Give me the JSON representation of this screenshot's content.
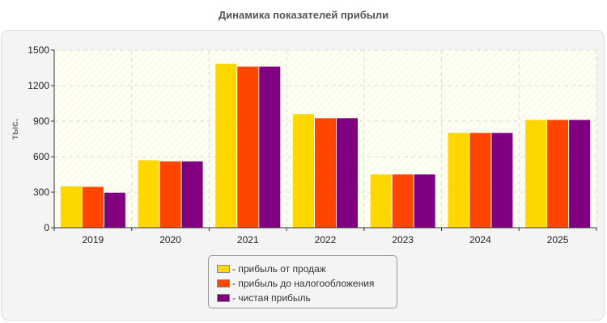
{
  "chart_data": {
    "type": "bar",
    "title": "Динамика показателей прибыли",
    "ylabel": "тыс.",
    "xlabel": "",
    "categories": [
      "2019",
      "2020",
      "2021",
      "2022",
      "2023",
      "2024",
      "2025"
    ],
    "ylim": [
      0,
      1500
    ],
    "yticks": [
      0,
      300,
      600,
      900,
      1200,
      1500
    ],
    "grid": true,
    "legend_position": "bottom",
    "series": [
      {
        "name": "- прибыль от продаж",
        "color": "#FFD700",
        "values": [
          350,
          570,
          1385,
          960,
          450,
          800,
          910
        ]
      },
      {
        "name": "- прибыль до налогообложения",
        "color": "#FF4500",
        "values": [
          345,
          560,
          1360,
          925,
          450,
          800,
          910
        ]
      },
      {
        "name": "- чистая прибыль",
        "color": "#800080",
        "values": [
          295,
          560,
          1360,
          925,
          450,
          800,
          910
        ]
      }
    ]
  }
}
